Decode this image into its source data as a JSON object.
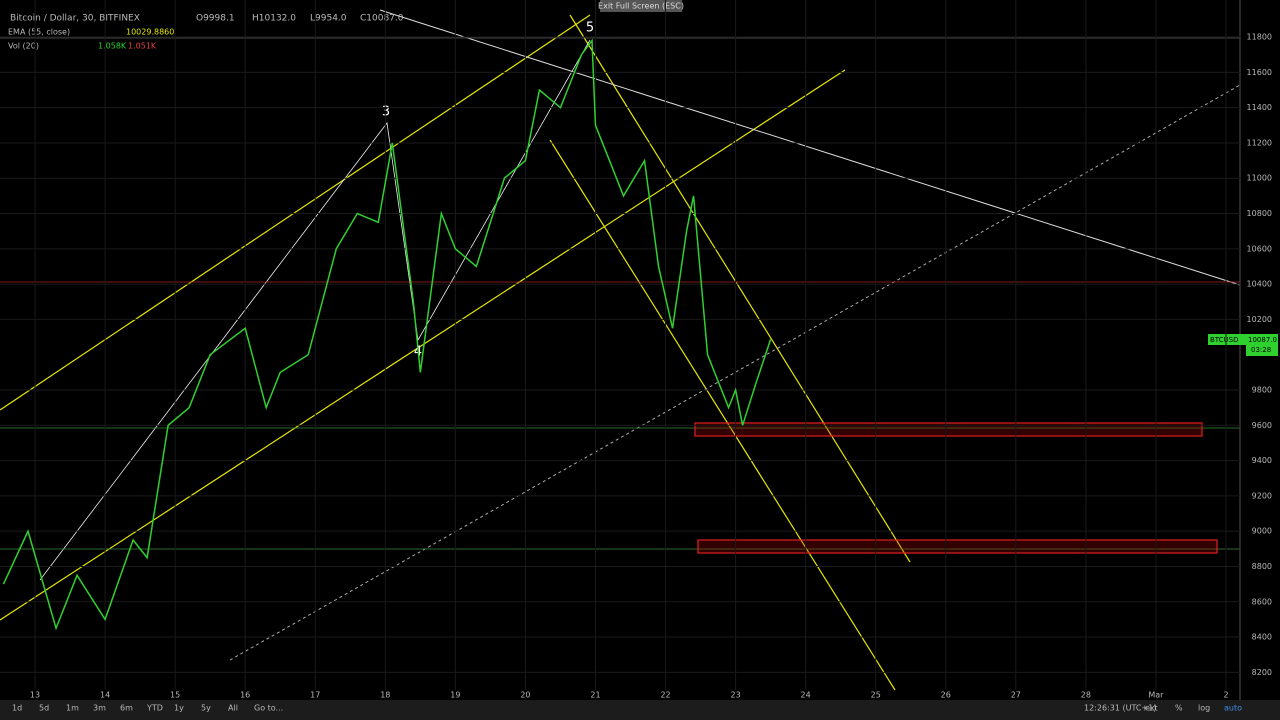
{
  "chart_data": {
    "type": "line",
    "header": {
      "symbol": "Bitcoin / Dollar, 30, BITFINEX",
      "open": "O9998.1",
      "high": "H10132.0",
      "low": "L9954.0",
      "close": "C10087.0",
      "ema_label": "EMA (55, close)",
      "ema_value": "10029.8860",
      "vol_label": "Vol (20)",
      "vol_value_1": "1.058K",
      "vol_value_2": "1.051K"
    },
    "fullscreen_hint": "Exit Full Screen (ESC)",
    "wave_labels": [
      "3",
      "4",
      "5"
    ],
    "price_tag": {
      "symbol": "BTCUSD",
      "price": "10087.0",
      "countdown": "03:28"
    },
    "series": [
      {
        "name": "BTCUSD",
        "color": "#2fd12f",
        "x": [
          12.55,
          12.9,
          13.3,
          13.6,
          14.0,
          14.4,
          14.6,
          14.9,
          15.2,
          15.5,
          16.0,
          16.3,
          16.5,
          16.9,
          17.3,
          17.6,
          17.9,
          18.1,
          18.4,
          18.5,
          18.8,
          19.0,
          19.3,
          19.7,
          20.0,
          20.2,
          20.5,
          20.8,
          20.95,
          21.0,
          21.4,
          21.7,
          21.9,
          22.1,
          22.3,
          22.4,
          22.6,
          22.9,
          23.0,
          23.1,
          23.3,
          23.5
        ],
        "values": [
          8700,
          9000,
          8450,
          8750,
          8500,
          8950,
          8850,
          9600,
          9700,
          10000,
          10150,
          9700,
          9900,
          10000,
          10600,
          10800,
          10750,
          11200,
          10300,
          9900,
          10800,
          10600,
          10500,
          11000,
          11100,
          11500,
          11400,
          11700,
          11780,
          11300,
          10900,
          11100,
          10500,
          10150,
          10700,
          10900,
          10000,
          9700,
          9800,
          9600,
          9850,
          10087
        ]
      }
    ],
    "xlim": [
      12.5,
      30.2
    ],
    "xticks": [
      13,
      14,
      15,
      16,
      17,
      18,
      19,
      20,
      21,
      22,
      23,
      24,
      25,
      26,
      27,
      28,
      {
        "value": 29,
        "label": "Mar"
      },
      {
        "value": 30,
        "label": "2"
      }
    ],
    "ylim": [
      8100,
      12010
    ],
    "yticks": [
      11800,
      11600,
      11400,
      11200,
      11000,
      10800,
      10600,
      10400,
      10200,
      9800,
      9600,
      9400,
      9200,
      9000,
      8800,
      8600,
      8400,
      8200
    ],
    "toolbar_left": [
      "1d",
      "5d",
      "1m",
      "3m",
      "6m",
      "YTD",
      "1y",
      "5y",
      "All",
      "Go to..."
    ],
    "toolbar_right": [
      "12:26:31 (UTC+1)",
      "ext",
      "%",
      "log",
      "auto"
    ]
  }
}
